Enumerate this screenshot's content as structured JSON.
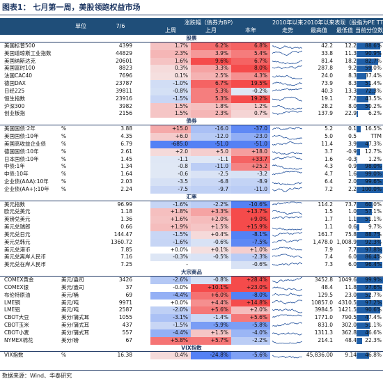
{
  "title": "图表1：  七月第一周，美股领跑权益市场",
  "header": {
    "unit": "单位",
    "date": "7/6",
    "change_group": "涨跌幅（债券为BP）",
    "since_label": "2010年以来",
    "trend_label": "走势",
    "valuation_group": "2010年以来表现（股指为PE TTM）",
    "week": "上周",
    "month": "上月",
    "ytd": "本年",
    "high": "最高值",
    "low": "最低值",
    "pct": "当前分位数"
  },
  "colors": {
    "header_bg": "#1f4e79",
    "title": "#1f3864",
    "pct_bar": "#1f5fa8"
  },
  "sections": [
    {
      "label": "股票",
      "rows": [
        {
          "name": "美国标普500",
          "unit": "",
          "value": "4399",
          "w": "1.7%",
          "m": "6.2%",
          "y": "6.8%",
          "hi": "42.2",
          "lo": "12.2",
          "pct": "88.6%",
          "pctv": 88.6
        },
        {
          "name": "美国道琼斯工业指数",
          "unit": "",
          "value": "44829",
          "w": "2.3%",
          "m": "3.9%",
          "y": "5.4%",
          "hi": "33.8",
          "lo": "11.3",
          "pct": "90.9%",
          "pctv": 90.9
        },
        {
          "name": "美国纳斯达克",
          "unit": "",
          "value": "20601",
          "w": "1.6%",
          "m": "9.6%",
          "y": "6.7%",
          "hi": "81.4",
          "lo": "18.2",
          "pct": "82.7%",
          "pctv": 82.7
        },
        {
          "name": "英国富时100",
          "unit": "",
          "value": "8823",
          "w": "0.3%",
          "m": "3.3%",
          "y": "8.0%",
          "hi": "287.8",
          "lo": "9.2",
          "pct": "59.0%",
          "pctv": 59.0
        },
        {
          "name": "法国CAC40",
          "unit": "",
          "value": "7696",
          "w": "0.1%",
          "m": "2.5%",
          "y": "4.3%",
          "hi": "24.0",
          "lo": "8.3",
          "pct": "37.4%",
          "pctv": 37.4
        },
        {
          "name": "德国DAX",
          "unit": "",
          "value": "23787",
          "w": "-1.0%",
          "m": "6.7%",
          "y": "19.5%",
          "hi": "73.9",
          "lo": "8.3",
          "pct": "51.4%",
          "pctv": 51.4
        },
        {
          "name": "日经225",
          "unit": "",
          "value": "39811",
          "w": "-0.8%",
          "m": "5.3%",
          "y": "-0.2%",
          "hi": "40.3",
          "lo": "13.3",
          "pct": "72.3%",
          "pctv": 72.3
        },
        {
          "name": "恒生指数",
          "unit": "",
          "value": "23916",
          "w": "-1.5%",
          "m": "5.3%",
          "y": "19.2%",
          "hi": "19.1",
          "lo": "7.2",
          "pct": "43.5%",
          "pctv": 43.5
        },
        {
          "name": "沪深300",
          "unit": "",
          "value": "3982",
          "w": "1.5%",
          "m": "1.8%",
          "y": "1.2%",
          "hi": "28.2",
          "lo": "8.0",
          "pct": "50.2%",
          "pctv": 50.2
        },
        {
          "name": "创业板指",
          "unit": "",
          "value": "2156",
          "w": "1.5%",
          "m": "2.3%",
          "y": "0.7%",
          "hi": "137.9",
          "lo": "22.9",
          "pct": "6.2%",
          "pctv": 6.2
        }
      ]
    },
    {
      "label": "债券",
      "rows": [
        {
          "name": "美国国债:2年",
          "unit": "%",
          "value": "3.88",
          "w": "+15.0",
          "m": "-16.0",
          "y": "-37.0",
          "hi": "5.2",
          "lo": "0.1",
          "pct": "16.5%",
          "pctv": 16.5
        },
        {
          "name": "美国国债:10年",
          "unit": "%",
          "value": "4.35",
          "w": "+6.0",
          "m": "-12.0",
          "y": "-23.0",
          "hi": "5.0",
          "lo": "0.5",
          "pct": "TTM",
          "pctv": 0
        },
        {
          "name": "美国高收益企业债",
          "unit": "%",
          "value": "6.79",
          "w": "-685.0",
          "m": "-51.0",
          "y": "-51.0",
          "hi": "11.4",
          "lo": "3.9",
          "pct": "47.3%",
          "pctv": 47.3
        },
        {
          "name": "德国国债:10年",
          "unit": "%",
          "value": "2.61",
          "w": "+2.0",
          "m": "+5.0",
          "y": "+18.0",
          "hi": "3.7",
          "lo": "-0.9",
          "pct": "12.7%",
          "pctv": 12.7
        },
        {
          "name": "日本国债:10年",
          "unit": "%",
          "value": "1.45",
          "m": "-1.1",
          "w": "-1.1",
          "m2": "",
          "y": "+33.7",
          "hi": "1.6",
          "lo": "-0.3",
          "pct": "1.2%",
          "pctv": 1.2
        },
        {
          "name": "中债:1年",
          "unit": "%",
          "value": "1.34",
          "w": "-0.8",
          "m": "-11.0",
          "y": "+25.2",
          "hi": "4.3",
          "lo": "0.9",
          "pct": "98.0%",
          "pctv": 98.0
        },
        {
          "name": "中债:10年",
          "unit": "%",
          "value": "1.64",
          "w": "-0.6",
          "m": "-2.5",
          "y": "-3.2",
          "hi": "4.7",
          "lo": "1.6",
          "pct": "99.0%",
          "pctv": 99.0
        },
        {
          "name": "企业债(AAA):10年",
          "unit": "%",
          "value": "2.03",
          "w": "-3.5",
          "m": "-6.8",
          "y": "-8.9",
          "hi": "6.4",
          "lo": "2.0",
          "pct": "99.6%",
          "pctv": 99.6
        },
        {
          "name": "企业债(AA+):10年",
          "unit": "%",
          "value": "2.24",
          "w": "-7.5",
          "m": "-9.7",
          "y": "-11.0",
          "hi": "7.2",
          "lo": "2.2",
          "pct": "100.0%",
          "pctv": 100.0
        }
      ]
    },
    {
      "label": "汇率",
      "rows": [
        {
          "name": "美元指数",
          "unit": "",
          "value": "96.99",
          "w": "-1.6%",
          "m": "-2.2%",
          "y": "-10.6%",
          "hi": "114.2",
          "lo": "73.7",
          "pct": "60.0%",
          "pctv": 60.0
        },
        {
          "name": "欧元兑美元",
          "unit": "",
          "value": "1.18",
          "w": "+1.8%",
          "m": "+3.3%",
          "y": "+13.7%",
          "hi": "1.5",
          "lo": "1.0",
          "pct": "57.1%",
          "pctv": 57.1
        },
        {
          "name": "英镑兑美元",
          "unit": "",
          "value": "1.36",
          "w": "+1.6%",
          "m": "+2.0%",
          "y": "+9.0%",
          "hi": "1.7",
          "lo": "1.1",
          "pct": "51.1%",
          "pctv": 51.1
        },
        {
          "name": "美元兑瑞郎",
          "unit": "",
          "value": "0.66",
          "w": "+1.9%",
          "m": "+1.5%",
          "y": "+15.9%",
          "hi": "1.1",
          "lo": "0.6",
          "pct": "9.7%",
          "pctv": 9.7
        },
        {
          "name": "美元兑日元",
          "unit": "",
          "value": "144.47",
          "w": "-1.5%",
          "m": "+0.4%",
          "y": "-8.1%",
          "hi": "161.7",
          "lo": "75.8",
          "pct": "88.7%",
          "pctv": 88.7
        },
        {
          "name": "美元兑韩元",
          "unit": "",
          "value": "1360.72",
          "w": "-1.6%",
          "m": "-0.6%",
          "y": "-7.5%",
          "hi": "1,478.0",
          "lo": "1,008.9",
          "pct": "92.3%",
          "pctv": 92.3
        },
        {
          "name": "美元兑港币",
          "unit": "",
          "value": "7.85",
          "w": "+0.0%",
          "m": "+0.1%",
          "y": "+1.0%",
          "hi": "7.9",
          "lo": "7.7",
          "pct": "97.8%",
          "pctv": 97.8
        },
        {
          "name": "美元兑离岸人民币",
          "unit": "",
          "value": "7.16",
          "w": "-0.3%",
          "m": "-0.5%",
          "y": "-2.3%",
          "hi": "7.4",
          "lo": "6.0",
          "pct": "86.4%",
          "pctv": 86.4
        },
        {
          "name": "美元兑在岸人民币",
          "unit": "",
          "value": "7.25",
          "w": "-",
          "m": "",
          "y": "-0.6%",
          "hi": "7.3",
          "lo": "6.0",
          "pct": "96.4%",
          "pctv": 96.4
        }
      ]
    },
    {
      "label": "大宗商品",
      "rows": [
        {
          "name": "COMEX黄金",
          "unit": "美元/盎司",
          "value": "3426",
          "w": "-2.6%",
          "m": "-0.8%",
          "y": "+28.4%",
          "hi": "3452.8",
          "lo": "1049.6",
          "pct": "99.9%",
          "pctv": 99.9
        },
        {
          "name": "COMEX银",
          "unit": "美元/盎司",
          "value": "37",
          "w": "-0.0%",
          "m": "+10.1%",
          "y": "+23.0%",
          "hi": "48.4",
          "lo": "11.8",
          "pct": "97.6%",
          "pctv": 97.6
        },
        {
          "name": "布伦特原油",
          "unit": "美元/桶",
          "value": "69",
          "w": "-4.4%",
          "m": "+6.0%",
          "y": "-8.0%",
          "hi": "129.5",
          "lo": "23.0",
          "pct": "52.7%",
          "pctv": 52.7
        },
        {
          "name": "LME铜",
          "unit": "美元/吨",
          "value": "9971",
          "w": "+0.0%",
          "m": "+4.4%",
          "y": "+14.8%",
          "hi": "10857.0",
          "lo": "4310.5",
          "pct": "97.2%",
          "pctv": 97.2
        },
        {
          "name": "LME铝",
          "unit": "美元/吨",
          "value": "2587",
          "w": "-2.0%",
          "m": "+5.6%",
          "y": "+2.0%",
          "hi": "3984.5",
          "lo": "1421.5",
          "pct": "90.6%",
          "pctv": 90.6
        },
        {
          "name": "CBOT大豆",
          "unit": "美分/蒲式耳",
          "value": "1055",
          "w": "-3.1%",
          "m": "-1.4%",
          "y": "+5.6%",
          "hi": "1771.0",
          "lo": "790.5",
          "pct": "47.4%",
          "pctv": 47.4
        },
        {
          "name": "CBOT玉米",
          "unit": "美分/蒲式耳",
          "value": "437",
          "w": "-1.5%",
          "m": "-5.9%",
          "y": "-5.8%",
          "hi": "831.0",
          "lo": "302.0",
          "pct": "51.1%",
          "pctv": 51.1
        },
        {
          "name": "CBOT小麦",
          "unit": "美分/蒲式耳",
          "value": "557",
          "w": "-4.4%",
          "m": "+1.5%",
          "y": "-4.0%",
          "hi": "1311.3",
          "lo": "362.8",
          "pct": "46.6%",
          "pctv": 46.6
        },
        {
          "name": "NYMEX棉花",
          "unit": "美分/磅",
          "value": "67",
          "w": "+5.8%",
          "m": "+5.7%",
          "y": "-2.2%",
          "hi": "214.1",
          "lo": "48.4",
          "pct": "22.3%",
          "pctv": 22.3
        }
      ]
    },
    {
      "label": "VIX指数",
      "rows": [
        {
          "name": "VIX指数",
          "unit": "%",
          "value": "16.38",
          "w": "0.4%",
          "m": "-24.8%",
          "y": "-5.6%",
          "hi": "45,836.00",
          "lo": "9.14",
          "pct": "46.8%",
          "pctv": 46.8
        }
      ]
    }
  ],
  "source": "数据来源：Wind、华泰研究"
}
